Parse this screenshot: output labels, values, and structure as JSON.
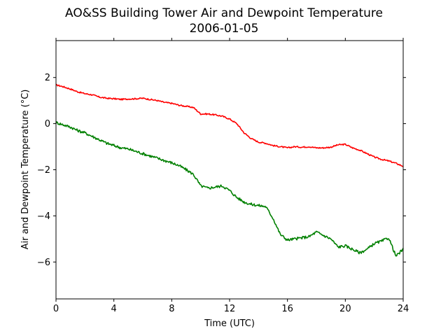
{
  "chart_data": {
    "type": "line",
    "title": "AO&SS Building Tower Air and Dewpoint Temperature",
    "subtitle": "2006-01-05",
    "xlabel": "Time (UTC)",
    "ylabel": "Air and Dewpoint Temperature (°C)",
    "xlim": [
      0,
      24
    ],
    "ylim": [
      -7.6,
      3.6
    ],
    "xticks": [
      0,
      4,
      8,
      12,
      16,
      20,
      24
    ],
    "yticks": [
      -6,
      -4,
      -2,
      0,
      2
    ],
    "ytick_labels": [
      "−6",
      "−4",
      "−2",
      "0",
      "2"
    ],
    "grid": false,
    "legend": "none",
    "x": [
      0,
      0.5,
      1,
      1.5,
      2,
      2.5,
      3,
      3.5,
      4,
      4.5,
      5,
      5.5,
      6,
      6.5,
      7,
      7.5,
      8,
      8.5,
      9,
      9.5,
      10,
      10.5,
      11,
      11.5,
      12,
      12.5,
      13,
      13.5,
      14,
      14.5,
      15,
      15.5,
      16,
      16.5,
      17,
      17.5,
      18,
      18.5,
      19,
      19.5,
      20,
      20.5,
      21,
      21.5,
      22,
      22.5,
      23,
      23.5,
      24
    ],
    "series": [
      {
        "color": "#ff0000",
        "values": [
          1.68,
          1.6,
          1.5,
          1.38,
          1.3,
          1.25,
          1.15,
          1.1,
          1.08,
          1.05,
          1.07,
          1.08,
          1.1,
          1.05,
          1.0,
          0.92,
          0.88,
          0.8,
          0.75,
          0.7,
          0.42,
          0.42,
          0.38,
          0.32,
          0.2,
          0.0,
          -0.4,
          -0.65,
          -0.8,
          -0.85,
          -0.95,
          -1.0,
          -1.05,
          -1.0,
          -1.02,
          -1.0,
          -1.05,
          -1.05,
          -1.02,
          -0.92,
          -0.9,
          -1.05,
          -1.15,
          -1.3,
          -1.45,
          -1.55,
          -1.62,
          -1.72,
          -1.85
        ]
      },
      {
        "color": "#008000",
        "values": [
          0.05,
          -0.05,
          -0.15,
          -0.3,
          -0.4,
          -0.55,
          -0.7,
          -0.85,
          -0.95,
          -1.05,
          -1.1,
          -1.2,
          -1.3,
          -1.4,
          -1.5,
          -1.6,
          -1.7,
          -1.82,
          -2.0,
          -2.2,
          -2.7,
          -2.8,
          -2.75,
          -2.7,
          -2.9,
          -3.2,
          -3.4,
          -3.5,
          -3.55,
          -3.6,
          -4.1,
          -4.8,
          -5.05,
          -5.0,
          -4.95,
          -4.9,
          -4.7,
          -4.85,
          -5.0,
          -5.35,
          -5.3,
          -5.45,
          -5.6,
          -5.45,
          -5.2,
          -5.1,
          -4.95,
          -5.75,
          -5.45
        ]
      }
    ]
  }
}
